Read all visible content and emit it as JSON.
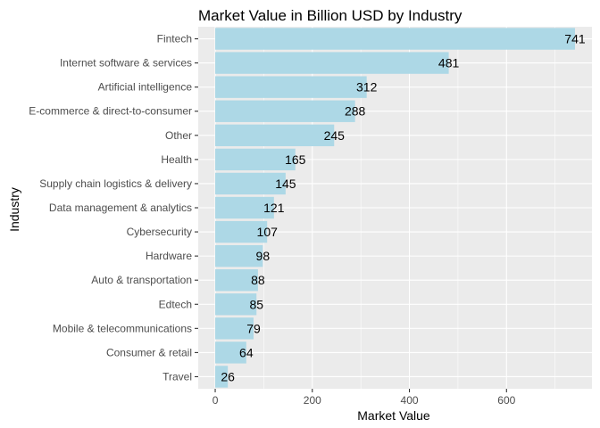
{
  "chart_data": {
    "type": "bar",
    "orientation": "horizontal",
    "title": "Market Value in Billion USD by Industry",
    "xlabel": "Market Value",
    "ylabel": "Industry",
    "xlim": [
      0,
      741
    ],
    "x_ticks": [
      0,
      200,
      400,
      600
    ],
    "grid": true,
    "categories": [
      "Fintech",
      "Internet software & services",
      "Artificial intelligence",
      "E-commerce & direct-to-consumer",
      "Other",
      "Health",
      "Supply chain logistics & delivery",
      "Data management & analytics",
      "Cybersecurity",
      "Hardware",
      "Auto & transportation",
      "Edtech",
      "Mobile & telecommunications",
      "Consumer & retail",
      "Travel"
    ],
    "values": [
      741,
      481,
      312,
      288,
      245,
      165,
      145,
      121,
      107,
      98,
      88,
      85,
      79,
      64,
      26
    ],
    "colors": {
      "bar": "#add8e6",
      "panel": "#ebebeb",
      "grid": "#ffffff"
    }
  }
}
